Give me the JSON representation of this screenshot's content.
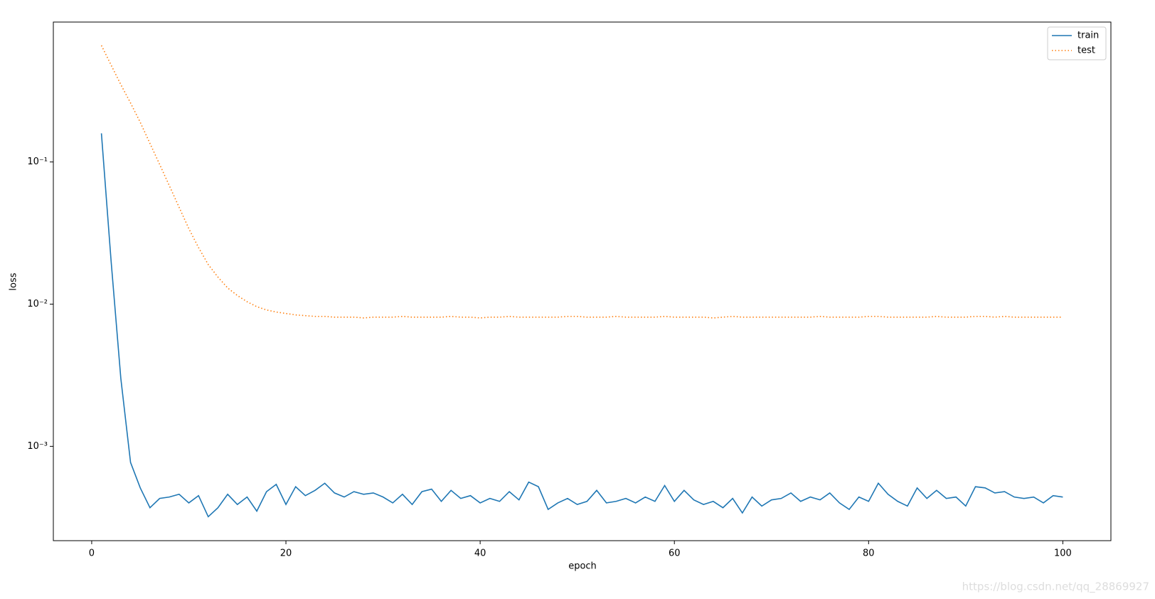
{
  "chart_data": {
    "type": "line",
    "xlabel": "epoch",
    "ylabel": "loss",
    "yscale": "log",
    "legend": "upper right",
    "xlim": [
      -3.95,
      104.95
    ],
    "xticks": [
      0,
      20,
      40,
      60,
      80,
      100
    ],
    "ylim": [
      0.000217,
      0.964
    ],
    "yticks": [
      {
        "value": 0.001,
        "label": "10⁻³"
      },
      {
        "value": 0.01,
        "label": "10⁻²"
      },
      {
        "value": 0.1,
        "label": "10⁻¹"
      }
    ],
    "x": [
      1,
      2,
      3,
      4,
      5,
      6,
      7,
      8,
      9,
      10,
      11,
      12,
      13,
      14,
      15,
      16,
      17,
      18,
      19,
      20,
      21,
      22,
      23,
      24,
      25,
      26,
      27,
      28,
      29,
      30,
      31,
      32,
      33,
      34,
      35,
      36,
      37,
      38,
      39,
      40,
      41,
      42,
      43,
      44,
      45,
      46,
      47,
      48,
      49,
      50,
      51,
      52,
      53,
      54,
      55,
      56,
      57,
      58,
      59,
      60,
      61,
      62,
      63,
      64,
      65,
      66,
      67,
      68,
      69,
      70,
      71,
      72,
      73,
      74,
      75,
      76,
      77,
      78,
      79,
      80,
      81,
      82,
      83,
      84,
      85,
      86,
      87,
      88,
      89,
      90,
      91,
      92,
      93,
      94,
      95,
      96,
      97,
      98,
      99,
      100
    ],
    "series": [
      {
        "name": "train",
        "color": "#1f77b4",
        "linestyle": "solid",
        "values": [
          0.159,
          0.02,
          0.003,
          0.00077,
          0.00051,
          0.00037,
          0.00043,
          0.00044,
          0.00046,
          0.0004,
          0.00045,
          0.00032,
          0.00037,
          0.00046,
          0.00039,
          0.00044,
          0.00035,
          0.00048,
          0.00054,
          0.00039,
          0.00052,
          0.00045,
          0.00049,
          0.00055,
          0.00047,
          0.00044,
          0.00048,
          0.00046,
          0.00047,
          0.00044,
          0.0004,
          0.00046,
          0.00039,
          0.00048,
          0.0005,
          0.00041,
          0.00049,
          0.00043,
          0.00045,
          0.0004,
          0.00043,
          0.00041,
          0.00048,
          0.00042,
          0.00056,
          0.00052,
          0.00036,
          0.0004,
          0.00043,
          0.00039,
          0.00041,
          0.00049,
          0.0004,
          0.00041,
          0.00043,
          0.0004,
          0.00044,
          0.00041,
          0.00053,
          0.00041,
          0.00049,
          0.00042,
          0.00039,
          0.00041,
          0.00037,
          0.00043,
          0.00034,
          0.00044,
          0.00038,
          0.00042,
          0.00043,
          0.00047,
          0.00041,
          0.00044,
          0.00042,
          0.00047,
          0.0004,
          0.00036,
          0.00044,
          0.00041,
          0.00055,
          0.00046,
          0.00041,
          0.00038,
          0.00051,
          0.00043,
          0.00049,
          0.00043,
          0.00044,
          0.00038,
          0.00052,
          0.00051,
          0.00047,
          0.00048,
          0.00044,
          0.00043,
          0.00044,
          0.0004,
          0.00045,
          0.00044
        ]
      },
      {
        "name": "test",
        "color": "#ff7f0e",
        "linestyle": "dotted",
        "values": [
          0.66,
          0.48,
          0.35,
          0.26,
          0.19,
          0.135,
          0.096,
          0.068,
          0.048,
          0.034,
          0.025,
          0.019,
          0.0155,
          0.013,
          0.0115,
          0.0104,
          0.0096,
          0.0091,
          0.0088,
          0.0086,
          0.0084,
          0.0083,
          0.0082,
          0.0082,
          0.0081,
          0.0081,
          0.0081,
          0.008,
          0.0081,
          0.0081,
          0.0081,
          0.0082,
          0.0081,
          0.0081,
          0.0081,
          0.0081,
          0.0082,
          0.0081,
          0.0081,
          0.008,
          0.0081,
          0.0081,
          0.0082,
          0.0081,
          0.0081,
          0.0081,
          0.0081,
          0.0081,
          0.0082,
          0.0082,
          0.0081,
          0.0081,
          0.0081,
          0.0082,
          0.0081,
          0.0081,
          0.0081,
          0.0081,
          0.0082,
          0.0081,
          0.0081,
          0.0081,
          0.0081,
          0.008,
          0.0081,
          0.0082,
          0.0081,
          0.0081,
          0.0081,
          0.0081,
          0.0081,
          0.0081,
          0.0081,
          0.0081,
          0.0082,
          0.0081,
          0.0081,
          0.0081,
          0.0081,
          0.0082,
          0.0082,
          0.0081,
          0.0081,
          0.0081,
          0.0081,
          0.0081,
          0.0082,
          0.0081,
          0.0081,
          0.0081,
          0.0082,
          0.0082,
          0.0081,
          0.0082,
          0.0081,
          0.0081,
          0.0081,
          0.0081,
          0.0081,
          0.0081
        ]
      }
    ],
    "watermark": "https://blog.csdn.net/qq_28869927"
  }
}
